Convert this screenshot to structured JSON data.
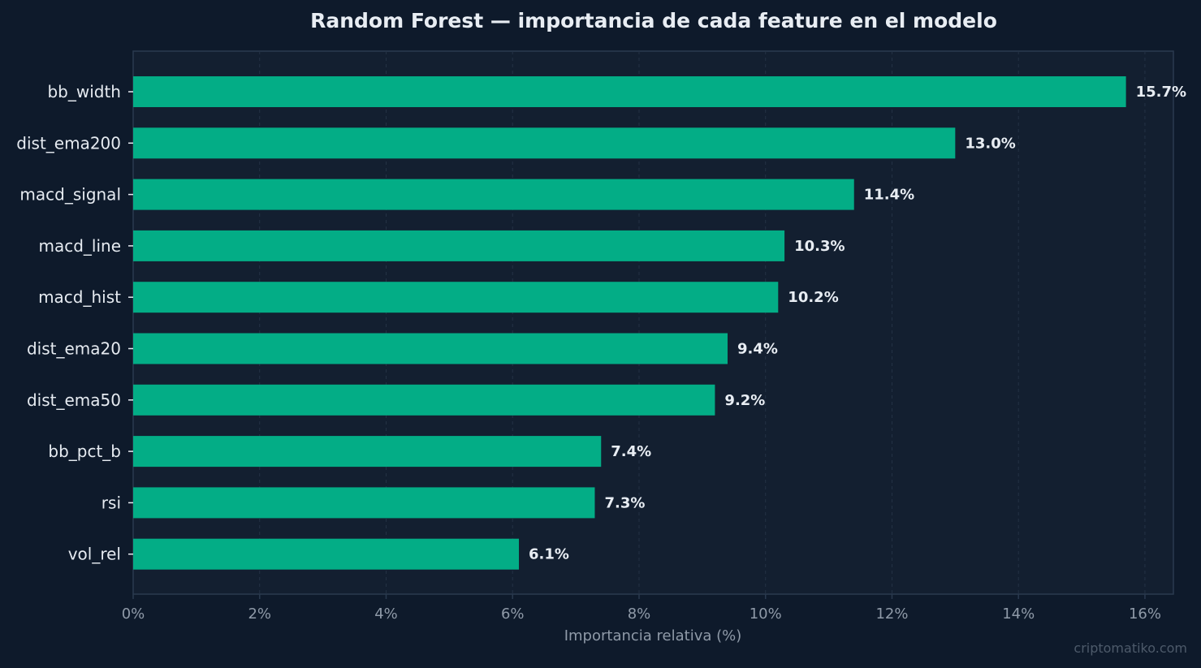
{
  "colors": {
    "background": "#0e1a2b",
    "plot_background": "#131f30",
    "bar": "#03ad86",
    "grid": "#243245",
    "spine": "#2a3a4f",
    "text": "#e6ebf1",
    "muted": "#8f9aa8"
  },
  "watermark": "criptomatiko.com",
  "chart_data": {
    "type": "bar",
    "orientation": "horizontal",
    "title": "Random Forest — importancia de cada feature en el modelo",
    "xlabel": "Importancia relativa (%)",
    "ylabel": "",
    "categories": [
      "bb_width",
      "dist_ema200",
      "macd_signal",
      "macd_line",
      "macd_hist",
      "dist_ema20",
      "dist_ema50",
      "bb_pct_b",
      "rsi",
      "vol_rel"
    ],
    "values": [
      15.7,
      13.0,
      11.4,
      10.3,
      10.2,
      9.4,
      9.2,
      7.4,
      7.3,
      6.1
    ],
    "value_labels": [
      "15.7%",
      "13.0%",
      "11.4%",
      "10.3%",
      "10.2%",
      "9.4%",
      "9.2%",
      "7.4%",
      "7.3%",
      "6.1%"
    ],
    "xlim": [
      0,
      16.45
    ],
    "xticks": [
      0,
      2,
      4,
      6,
      8,
      10,
      12,
      14,
      16
    ],
    "xtick_labels": [
      "0%",
      "2%",
      "4%",
      "6%",
      "8%",
      "10%",
      "12%",
      "14%",
      "16%"
    ],
    "grid": "vertical dashed",
    "legend": "none"
  }
}
